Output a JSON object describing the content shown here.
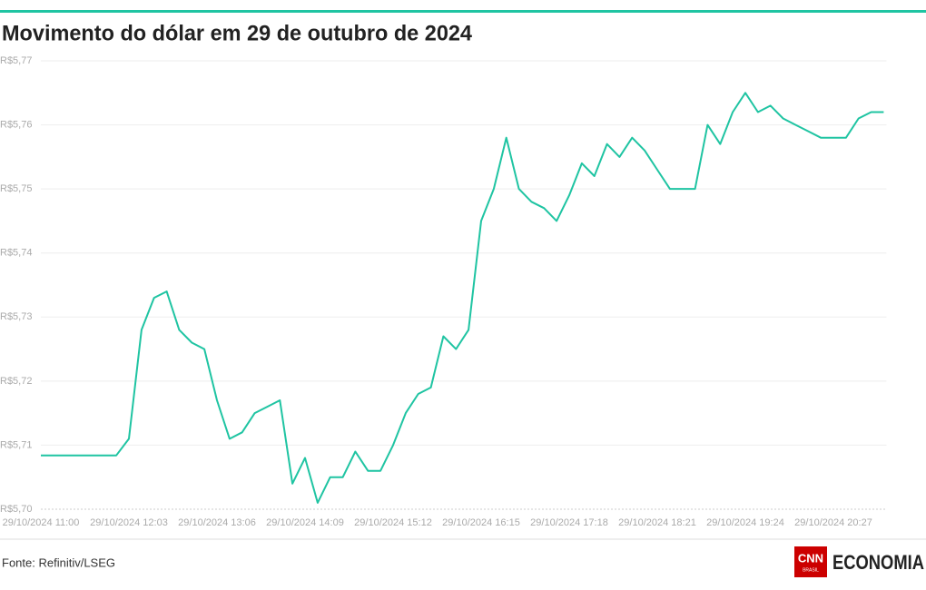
{
  "chart_data": {
    "type": "line",
    "title": "Movimento do dólar em 29 de outubro de 2024",
    "source": "Fonte: Refinitiv/LSEG",
    "logo": {
      "badge": "CNN",
      "badge_sub": "BRASIL",
      "text": "ECONOMIA"
    },
    "x": [
      "29/10/2024 11:00",
      "29/10/2024 11:09",
      "29/10/2024 11:18",
      "29/10/2024 11:27",
      "29/10/2024 11:36",
      "29/10/2024 11:45",
      "29/10/2024 11:54",
      "29/10/2024 12:03",
      "29/10/2024 12:12",
      "29/10/2024 12:21",
      "29/10/2024 12:30",
      "29/10/2024 12:39",
      "29/10/2024 12:48",
      "29/10/2024 12:57",
      "29/10/2024 13:06",
      "29/10/2024 13:15",
      "29/10/2024 13:24",
      "29/10/2024 13:33",
      "29/10/2024 13:42",
      "29/10/2024 13:51",
      "29/10/2024 14:00",
      "29/10/2024 14:09",
      "29/10/2024 14:18",
      "29/10/2024 14:27",
      "29/10/2024 14:36",
      "29/10/2024 14:45",
      "29/10/2024 14:54",
      "29/10/2024 15:03",
      "29/10/2024 15:12",
      "29/10/2024 15:21",
      "29/10/2024 15:30",
      "29/10/2024 15:39",
      "29/10/2024 15:48",
      "29/10/2024 15:57",
      "29/10/2024 16:06",
      "29/10/2024 16:15",
      "29/10/2024 16:24",
      "29/10/2024 16:33",
      "29/10/2024 16:42",
      "29/10/2024 16:51",
      "29/10/2024 17:00",
      "29/10/2024 17:09",
      "29/10/2024 17:18",
      "29/10/2024 17:27",
      "29/10/2024 17:36",
      "29/10/2024 17:45",
      "29/10/2024 17:54",
      "29/10/2024 18:03",
      "29/10/2024 18:12",
      "29/10/2024 18:21",
      "29/10/2024 18:30",
      "29/10/2024 18:39",
      "29/10/2024 18:48",
      "29/10/2024 18:57",
      "29/10/2024 19:06",
      "29/10/2024 19:15",
      "29/10/2024 19:24",
      "29/10/2024 19:33",
      "29/10/2024 19:42",
      "29/10/2024 19:51",
      "29/10/2024 20:00",
      "29/10/2024 20:09",
      "29/10/2024 20:18",
      "29/10/2024 20:27",
      "29/10/2024 20:36",
      "29/10/2024 20:45",
      "29/10/2024 20:54",
      "29/10/2024 21:03"
    ],
    "series": [
      {
        "color": "#1fc4a2",
        "values": [
          5.7084,
          5.7084,
          5.7084,
          5.7084,
          5.7084,
          5.7084,
          5.7084,
          5.711,
          5.728,
          5.733,
          5.734,
          5.728,
          5.726,
          5.725,
          5.717,
          5.711,
          5.712,
          5.715,
          5.716,
          5.717,
          5.704,
          5.708,
          5.701,
          5.705,
          5.705,
          5.709,
          5.706,
          5.706,
          5.71,
          5.715,
          5.718,
          5.719,
          5.727,
          5.725,
          5.728,
          5.745,
          5.75,
          5.758,
          5.75,
          5.748,
          5.747,
          5.745,
          5.749,
          5.754,
          5.752,
          5.757,
          5.755,
          5.758,
          5.756,
          5.753,
          5.75,
          5.75,
          5.75,
          5.76,
          5.757,
          5.762,
          5.765,
          5.762,
          5.763,
          5.761,
          5.76,
          5.759,
          5.758,
          5.758,
          5.758,
          5.761,
          5.762,
          5.762
        ]
      }
    ],
    "xticks": [
      "29/10/2024 11:00",
      "29/10/2024 12:03",
      "29/10/2024 13:06",
      "29/10/2024 14:09",
      "29/10/2024 15:12",
      "29/10/2024 16:15",
      "29/10/2024 17:18",
      "29/10/2024 18:21",
      "29/10/2024 19:24",
      "29/10/2024 20:27"
    ],
    "ylim": [
      5.7,
      5.77
    ],
    "yticks": [
      {
        "value": 5.7,
        "label": "R$5,70"
      },
      {
        "value": 5.71,
        "label": "R$5,71"
      },
      {
        "value": 5.72,
        "label": "R$5,72"
      },
      {
        "value": 5.73,
        "label": "R$5,73"
      },
      {
        "value": 5.74,
        "label": "R$5,74"
      },
      {
        "value": 5.75,
        "label": "R$5,75"
      },
      {
        "value": 5.76,
        "label": "R$5,76"
      },
      {
        "value": 5.77,
        "label": "R$5,77"
      }
    ],
    "grid": true
  }
}
